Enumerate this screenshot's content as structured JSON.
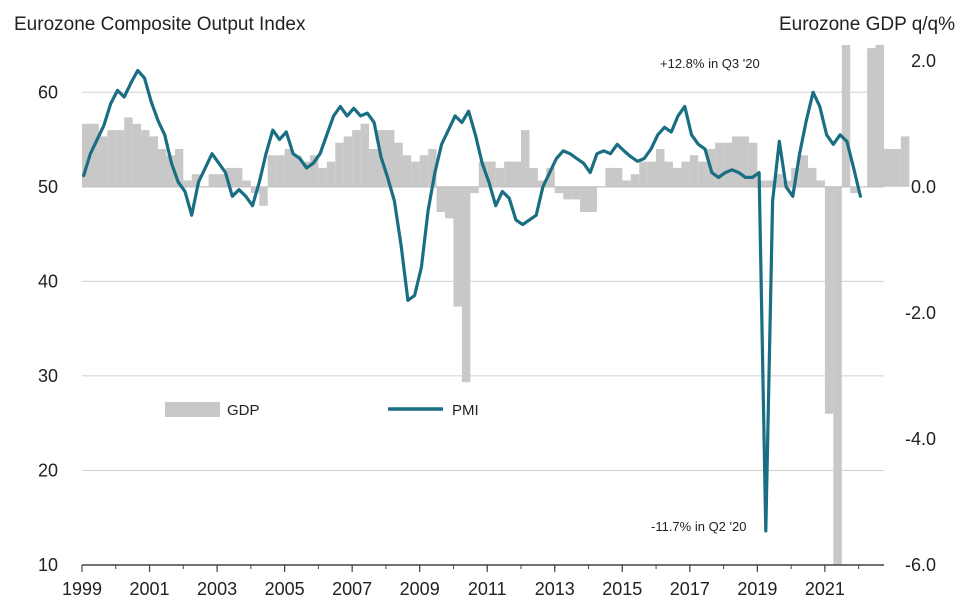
{
  "chart_data": {
    "type": "bar+line",
    "title_left": "Eurozone Composite Output Index",
    "title_right": "Eurozone GDP q/q%",
    "left_axis": {
      "ylim": [
        10,
        65
      ],
      "ticks": [
        10,
        20,
        30,
        40,
        50,
        60
      ]
    },
    "right_axis": {
      "ylim": [
        -6.0,
        2.25
      ],
      "ticks": [
        "-6.0",
        "-4.0",
        "-2.0",
        "0.0",
        "2.0"
      ]
    },
    "x_axis": {
      "xlim": [
        1999,
        2022.75
      ],
      "ticks": [
        "1999",
        "2001",
        "2003",
        "2005",
        "2007",
        "2009",
        "2011",
        "2013",
        "2015",
        "2017",
        "2019",
        "2021"
      ]
    },
    "grid": "horizontal",
    "legend": {
      "placement": "left-center",
      "items": [
        {
          "name": "GDP",
          "kind": "bar",
          "color": "#c8c8c8"
        },
        {
          "name": "PMI",
          "kind": "line",
          "color": "#1a6e83"
        }
      ]
    },
    "colors": {
      "gdp": "#c8c8c8",
      "pmi": "#1a6e83",
      "grid": "#d0d0d0",
      "axis": "#444444"
    },
    "annotations": [
      {
        "text": "+12.8% in Q3 '20"
      },
      {
        "text": "-11.7% in Q2 '20"
      }
    ],
    "gdp_series": {
      "name": "GDP",
      "start": 1999.0,
      "values": [
        1.0,
        1.0,
        0.8,
        0.9,
        0.9,
        1.1,
        1.0,
        0.9,
        0.8,
        0.6,
        0.5,
        0.6,
        0.1,
        0.2,
        0.0,
        0.2,
        0.2,
        0.3,
        0.3,
        0.1,
        -0.1,
        -0.3,
        0.5,
        0.5,
        0.6,
        0.5,
        0.4,
        0.5,
        0.3,
        0.4,
        0.7,
        0.8,
        0.9,
        1.0,
        0.6,
        0.9,
        0.9,
        0.7,
        0.5,
        0.4,
        0.5,
        0.6,
        -0.4,
        -0.5,
        -1.9,
        -3.1,
        -0.1,
        0.4,
        0.4,
        0.3,
        0.4,
        0.4,
        0.9,
        0.3,
        0.1,
        0.3,
        -0.1,
        -0.2,
        -0.2,
        -0.4,
        -0.4,
        0.0,
        0.3,
        0.3,
        0.1,
        0.2,
        0.4,
        0.4,
        0.6,
        0.4,
        0.3,
        0.4,
        0.5,
        0.4,
        0.6,
        0.7,
        0.7,
        0.8,
        0.8,
        0.7,
        0.1,
        0.1,
        0.2,
        0.1,
        0.3,
        0.5,
        0.3,
        0.1,
        -3.6,
        -11.7,
        12.8,
        -0.1,
        0.0,
        2.2,
        2.3,
        0.6,
        0.6,
        0.8
      ]
    },
    "pmi_series": {
      "name": "PMI",
      "start": 1999.0,
      "values": [
        51.2,
        53.5,
        55.0,
        56.5,
        58.8,
        60.2,
        59.5,
        61.0,
        62.3,
        61.5,
        59.0,
        57.0,
        55.5,
        52.5,
        50.5,
        49.5,
        47.0,
        50.5,
        52.0,
        53.5,
        52.5,
        51.5,
        49.0,
        49.7,
        49.0,
        48.0,
        50.5,
        53.5,
        56.0,
        55.0,
        55.8,
        53.5,
        53.0,
        52.0,
        52.5,
        53.5,
        55.5,
        57.5,
        58.5,
        57.5,
        58.3,
        57.5,
        57.8,
        56.8,
        53.2,
        51.0,
        48.5,
        43.8,
        38.0,
        38.5,
        41.5,
        47.5,
        51.5,
        54.5,
        56.0,
        57.5,
        56.8,
        58.0,
        55.5,
        52.5,
        50.5,
        48.0,
        49.5,
        48.8,
        46.5,
        46.0,
        46.5,
        47.0,
        50.0,
        51.5,
        53.0,
        53.8,
        53.5,
        53.0,
        52.5,
        51.5,
        53.5,
        53.8,
        53.5,
        54.5,
        53.8,
        53.2,
        52.7,
        53.0,
        54.0,
        55.5,
        56.3,
        55.8,
        57.5,
        58.5,
        55.5,
        54.5,
        54.0,
        51.5,
        51.0,
        51.5,
        51.8,
        51.5,
        51.0,
        51.0,
        51.5,
        13.6,
        48.5,
        54.8,
        50.0,
        49.0,
        53.5,
        57.0,
        60.0,
        58.5,
        55.5,
        54.5,
        55.5,
        54.8,
        52.0,
        49.0
      ]
    }
  }
}
